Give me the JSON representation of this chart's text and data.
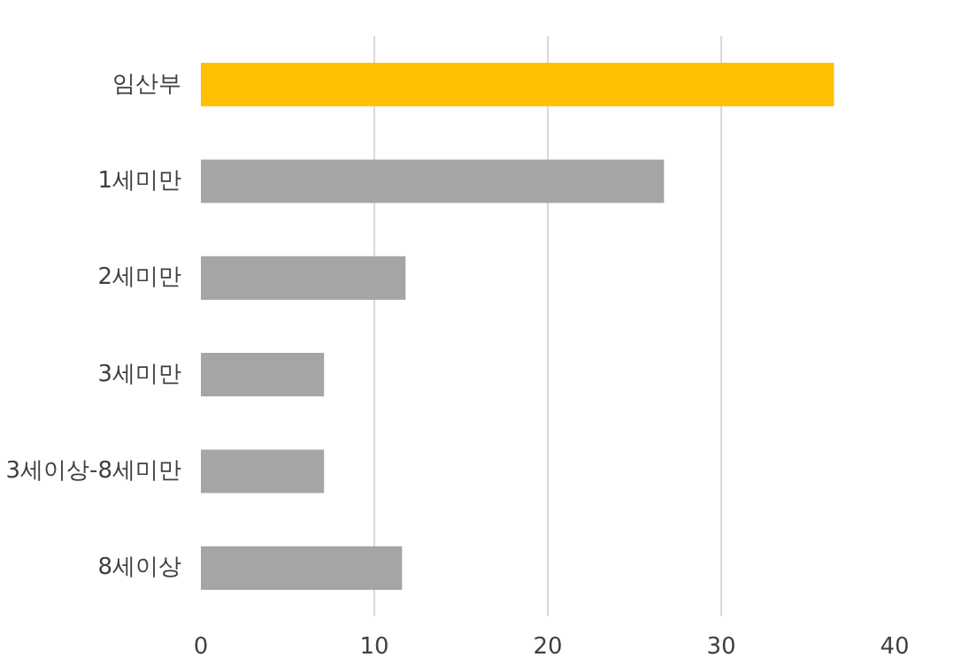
{
  "chart_data": {
    "type": "bar",
    "orientation": "horizontal",
    "categories": [
      "임산부",
      "1세미만",
      "2세미만",
      "3세미만",
      "3세이상-8세미만",
      "8세이상"
    ],
    "values": [
      36.5,
      26.7,
      11.8,
      7.1,
      7.1,
      11.6
    ],
    "colors": [
      "#ffc000",
      "#a5a5a5",
      "#a5a5a5",
      "#a5a5a5",
      "#a5a5a5",
      "#a5a5a5"
    ],
    "xlim": [
      0,
      40
    ],
    "xticks": [
      0,
      10,
      20,
      30,
      40
    ],
    "grid": "x"
  }
}
